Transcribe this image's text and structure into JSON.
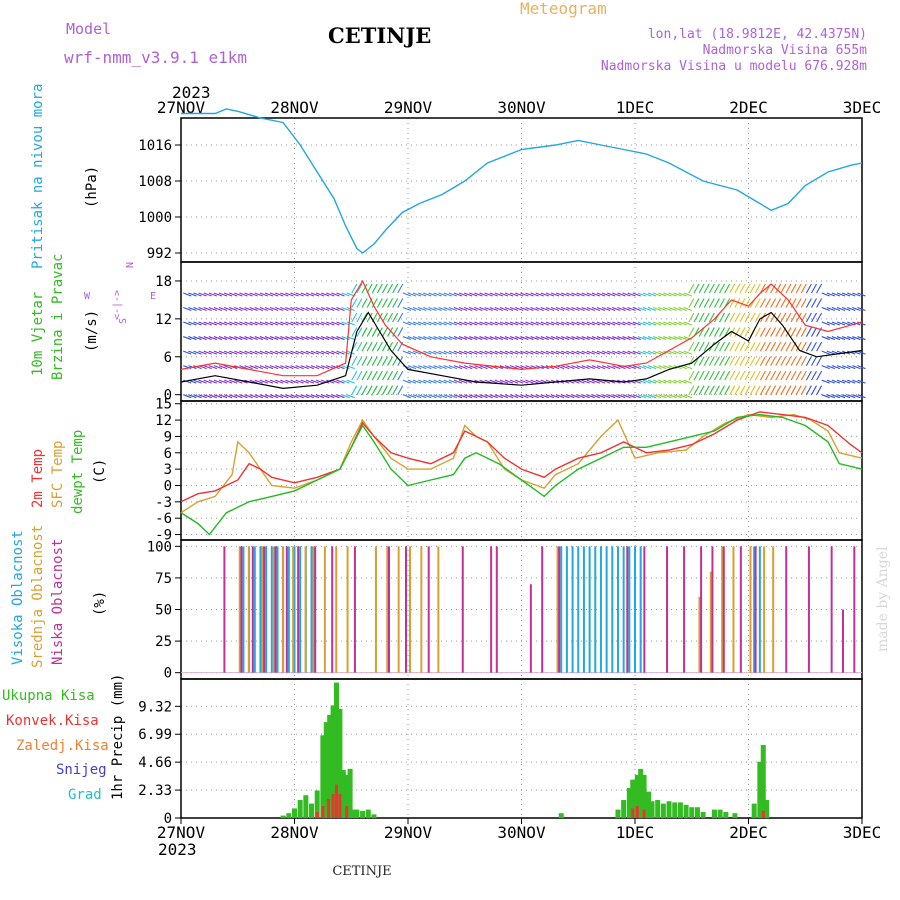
{
  "header": {
    "model_label": "Model",
    "model_name": "wrf-nmm_v3.9.1 e1km",
    "city": "CETINJE",
    "meteogram": "Meteogram",
    "lonlat": "lon,lat (18.9812E, 42.4375N)",
    "altitude": "Nadmorska Visina 655m",
    "model_altitude": "Nadmorska Visina u modelu 676.928m",
    "year": "2023",
    "footer_city": "CETINJE",
    "credit": "made by Angel"
  },
  "time_axis": {
    "labels": [
      "27NOV",
      "28NOV",
      "29NOV",
      "30NOV",
      "1DEC",
      "2DEC",
      "3DEC"
    ],
    "year": "2023"
  },
  "colors": {
    "pressure": "#22a7e0",
    "wind_speed": "#000000",
    "gust": "#ff3030",
    "temp2m": "#ee3333",
    "sfc_temp": "#d9a030",
    "dewpt": "#22bb22",
    "cloud_high": "#22a7e0",
    "cloud_mid": "#d9a030",
    "cloud_low": "#c0309a",
    "precip_total": "#33bb22",
    "precip_conv": "#ee3333"
  },
  "panels": {
    "pressure": {
      "title": "Pritisak na nivou mora",
      "unit": "(hPa)",
      "ticks": [
        992,
        1000,
        1008,
        1016
      ],
      "ylim": [
        990,
        1022
      ]
    },
    "wind": {
      "title1": "10m Vjetar",
      "title2": "Brzina i Pravac",
      "unit": "(m/s)",
      "ticks": [
        0,
        6,
        12,
        18
      ],
      "ylim": [
        -1,
        21
      ],
      "compass": {
        "n": "N",
        "w": "W",
        "e": "E",
        "arrows": "<-|->",
        "s": "S"
      }
    },
    "temp": {
      "title1": "2m Temp",
      "title2": "SFC Temp",
      "title3": "dewpt Temp",
      "unit": "(C)",
      "ticks": [
        -9,
        -6,
        -3,
        0,
        3,
        6,
        9,
        12,
        15
      ],
      "ylim": [
        -10,
        15.5
      ]
    },
    "cloud": {
      "title1": "Visoka Oblacnost",
      "title2": "Srednja Oblacnost",
      "title3": "Niska Oblacnost",
      "unit": "(%)",
      "ticks": [
        0,
        25,
        50,
        75,
        100
      ],
      "ylim": [
        -5,
        105
      ]
    },
    "precip": {
      "title1": "Ukupna Kisa",
      "title2": "Konvek.Kisa",
      "title3": "Zaledj.Kisa",
      "title4": "Snijeg",
      "title5": "Grad",
      "unit": "1hr Precip (mm)",
      "ticks": [
        0,
        2.33,
        4.66,
        6.99,
        9.32
      ],
      "ylim": [
        0,
        11.6
      ]
    }
  },
  "chart_data": {
    "type": "line",
    "x_unit": "days since 27NOV 00UTC",
    "pressure": [
      [
        0,
        1023
      ],
      [
        0.3,
        1023
      ],
      [
        0.4,
        1024
      ],
      [
        0.5,
        1023.5
      ],
      [
        0.7,
        1022
      ],
      [
        0.9,
        1021
      ],
      [
        1.05,
        1016
      ],
      [
        1.2,
        1010
      ],
      [
        1.35,
        1004
      ],
      [
        1.45,
        998
      ],
      [
        1.55,
        993
      ],
      [
        1.6,
        992
      ],
      [
        1.7,
        994
      ],
      [
        1.8,
        997
      ],
      [
        1.95,
        1001
      ],
      [
        2.1,
        1003
      ],
      [
        2.3,
        1005
      ],
      [
        2.5,
        1008
      ],
      [
        2.7,
        1012
      ],
      [
        3.0,
        1015
      ],
      [
        3.3,
        1016
      ],
      [
        3.5,
        1017
      ],
      [
        3.7,
        1016
      ],
      [
        3.9,
        1015
      ],
      [
        4.1,
        1014
      ],
      [
        4.3,
        1012
      ],
      [
        4.6,
        1008
      ],
      [
        4.9,
        1006
      ],
      [
        5.1,
        1003
      ],
      [
        5.2,
        1001.5
      ],
      [
        5.35,
        1003
      ],
      [
        5.5,
        1007
      ],
      [
        5.7,
        1010
      ],
      [
        5.9,
        1011.5
      ],
      [
        6.0,
        1012
      ]
    ],
    "wind_speed": [
      [
        0,
        2
      ],
      [
        0.3,
        3
      ],
      [
        0.6,
        2
      ],
      [
        0.9,
        1
      ],
      [
        1.2,
        1.5
      ],
      [
        1.45,
        3
      ],
      [
        1.55,
        10
      ],
      [
        1.65,
        13
      ],
      [
        1.75,
        10
      ],
      [
        1.85,
        7
      ],
      [
        2.0,
        4
      ],
      [
        2.3,
        3
      ],
      [
        2.6,
        2
      ],
      [
        3.0,
        1.5
      ],
      [
        3.3,
        2
      ],
      [
        3.6,
        2.5
      ],
      [
        3.9,
        2
      ],
      [
        4.1,
        2.5
      ],
      [
        4.3,
        4
      ],
      [
        4.5,
        5
      ],
      [
        4.7,
        8
      ],
      [
        4.85,
        10
      ],
      [
        5.0,
        8.5
      ],
      [
        5.1,
        12
      ],
      [
        5.2,
        13
      ],
      [
        5.3,
        11
      ],
      [
        5.45,
        7
      ],
      [
        5.6,
        6
      ],
      [
        5.8,
        6.5
      ],
      [
        6.0,
        7
      ]
    ],
    "wind_gust": [
      [
        0,
        4
      ],
      [
        0.3,
        5
      ],
      [
        0.6,
        4
      ],
      [
        0.9,
        3
      ],
      [
        1.2,
        3
      ],
      [
        1.45,
        5
      ],
      [
        1.5,
        15
      ],
      [
        1.6,
        18
      ],
      [
        1.7,
        14
      ],
      [
        1.8,
        11
      ],
      [
        1.95,
        8
      ],
      [
        2.2,
        6
      ],
      [
        2.5,
        5
      ],
      [
        3.0,
        4
      ],
      [
        3.3,
        4.5
      ],
      [
        3.6,
        5.5
      ],
      [
        3.9,
        4.5
      ],
      [
        4.1,
        5
      ],
      [
        4.3,
        7
      ],
      [
        4.5,
        9
      ],
      [
        4.7,
        12
      ],
      [
        4.85,
        15
      ],
      [
        5.0,
        14
      ],
      [
        5.1,
        16
      ],
      [
        5.2,
        17.5
      ],
      [
        5.35,
        15
      ],
      [
        5.5,
        11
      ],
      [
        5.7,
        10
      ],
      [
        5.9,
        11
      ],
      [
        6.0,
        11.5
      ]
    ],
    "temp2m": [
      [
        0,
        -3
      ],
      [
        0.15,
        -1.5
      ],
      [
        0.3,
        -1
      ],
      [
        0.5,
        1
      ],
      [
        0.6,
        4
      ],
      [
        0.7,
        3
      ],
      [
        0.8,
        1.5
      ],
      [
        1.0,
        0.5
      ],
      [
        1.2,
        1.5
      ],
      [
        1.4,
        3
      ],
      [
        1.5,
        7
      ],
      [
        1.6,
        11.5
      ],
      [
        1.7,
        9
      ],
      [
        1.85,
        6
      ],
      [
        2.0,
        5
      ],
      [
        2.2,
        4
      ],
      [
        2.4,
        6
      ],
      [
        2.5,
        10
      ],
      [
        2.6,
        9
      ],
      [
        2.7,
        8
      ],
      [
        2.85,
        5
      ],
      [
        3.0,
        3
      ],
      [
        3.2,
        1.5
      ],
      [
        3.3,
        3
      ],
      [
        3.5,
        5
      ],
      [
        3.7,
        6
      ],
      [
        3.9,
        8
      ],
      [
        4.1,
        6
      ],
      [
        4.3,
        6.5
      ],
      [
        4.5,
        7.5
      ],
      [
        4.7,
        9.5
      ],
      [
        4.9,
        12
      ],
      [
        5.1,
        13.5
      ],
      [
        5.3,
        13
      ],
      [
        5.5,
        12.5
      ],
      [
        5.7,
        11
      ],
      [
        5.9,
        7.5
      ],
      [
        6.0,
        6
      ]
    ],
    "sfc_temp": [
      [
        0,
        -5
      ],
      [
        0.15,
        -3
      ],
      [
        0.3,
        -2
      ],
      [
        0.45,
        2
      ],
      [
        0.5,
        8
      ],
      [
        0.6,
        6
      ],
      [
        0.7,
        3
      ],
      [
        0.8,
        0
      ],
      [
        1.0,
        -0.5
      ],
      [
        1.2,
        1
      ],
      [
        1.4,
        3
      ],
      [
        1.5,
        8
      ],
      [
        1.6,
        12
      ],
      [
        1.7,
        9
      ],
      [
        1.85,
        5
      ],
      [
        2.0,
        3
      ],
      [
        2.2,
        3
      ],
      [
        2.4,
        5
      ],
      [
        2.5,
        11
      ],
      [
        2.6,
        9
      ],
      [
        2.7,
        8
      ],
      [
        2.85,
        3
      ],
      [
        3.0,
        1
      ],
      [
        3.2,
        -0.5
      ],
      [
        3.3,
        2
      ],
      [
        3.5,
        4
      ],
      [
        3.7,
        9
      ],
      [
        3.85,
        12
      ],
      [
        4.0,
        5
      ],
      [
        4.2,
        6
      ],
      [
        4.45,
        6.5
      ],
      [
        4.6,
        9
      ],
      [
        4.8,
        11.5
      ],
      [
        5.0,
        13
      ],
      [
        5.2,
        12.5
      ],
      [
        5.4,
        13
      ],
      [
        5.55,
        12
      ],
      [
        5.7,
        10
      ],
      [
        5.8,
        6
      ],
      [
        6.0,
        5
      ]
    ],
    "dewpt": [
      [
        0,
        -5
      ],
      [
        0.15,
        -7
      ],
      [
        0.25,
        -9
      ],
      [
        0.4,
        -5
      ],
      [
        0.6,
        -3
      ],
      [
        0.8,
        -2
      ],
      [
        1.0,
        -1
      ],
      [
        1.2,
        1
      ],
      [
        1.4,
        3
      ],
      [
        1.5,
        7
      ],
      [
        1.6,
        11
      ],
      [
        1.7,
        8
      ],
      [
        1.85,
        3
      ],
      [
        2.0,
        0
      ],
      [
        2.2,
        1
      ],
      [
        2.4,
        2
      ],
      [
        2.5,
        5
      ],
      [
        2.6,
        6
      ],
      [
        2.8,
        4
      ],
      [
        3.0,
        1
      ],
      [
        3.2,
        -2
      ],
      [
        3.3,
        0
      ],
      [
        3.5,
        3
      ],
      [
        3.7,
        5
      ],
      [
        3.9,
        7
      ],
      [
        4.1,
        7
      ],
      [
        4.3,
        8
      ],
      [
        4.5,
        9
      ],
      [
        4.7,
        10
      ],
      [
        4.9,
        12.5
      ],
      [
        5.1,
        13
      ],
      [
        5.3,
        12.5
      ],
      [
        5.5,
        11
      ],
      [
        5.7,
        8
      ],
      [
        5.8,
        4
      ],
      [
        6.0,
        3
      ]
    ],
    "cloud_high": [
      [
        0.55,
        100
      ],
      [
        0.6,
        100
      ],
      [
        0.65,
        100
      ],
      [
        0.7,
        100
      ],
      [
        0.75,
        100
      ],
      [
        0.8,
        100
      ],
      [
        0.85,
        100
      ],
      [
        0.9,
        100
      ],
      [
        0.95,
        100
      ],
      [
        1.0,
        100
      ],
      [
        1.05,
        100
      ],
      [
        1.1,
        100
      ],
      [
        1.15,
        100
      ],
      [
        3.35,
        100
      ],
      [
        3.4,
        100
      ],
      [
        3.45,
        100
      ],
      [
        3.5,
        100
      ],
      [
        3.55,
        100
      ],
      [
        3.6,
        100
      ],
      [
        3.65,
        100
      ],
      [
        3.7,
        100
      ],
      [
        3.75,
        100
      ],
      [
        3.8,
        100
      ],
      [
        3.85,
        100
      ],
      [
        3.9,
        100
      ],
      [
        3.95,
        100
      ],
      [
        4.0,
        100
      ],
      [
        4.05,
        100
      ],
      [
        5.05,
        100
      ],
      [
        5.1,
        100
      ]
    ],
    "cloud_mid": [
      [
        0.5,
        100
      ],
      [
        0.58,
        100
      ],
      [
        0.7,
        100
      ],
      [
        0.8,
        100
      ],
      [
        0.88,
        100
      ],
      [
        0.97,
        100
      ],
      [
        1.02,
        100
      ],
      [
        1.08,
        100
      ],
      [
        1.15,
        100
      ],
      [
        1.25,
        100
      ],
      [
        1.35,
        100
      ],
      [
        1.45,
        100
      ],
      [
        1.7,
        100
      ],
      [
        1.8,
        100
      ],
      [
        1.9,
        100
      ],
      [
        2.0,
        100
      ],
      [
        2.1,
        100
      ],
      [
        2.25,
        100
      ],
      [
        3.3,
        100
      ],
      [
        4.55,
        60
      ],
      [
        4.65,
        80
      ],
      [
        4.75,
        100
      ],
      [
        4.85,
        100
      ],
      [
        5.0,
        100
      ],
      [
        5.12,
        100
      ],
      [
        5.2,
        100
      ]
    ],
    "cloud_low": [
      [
        0.4,
        100
      ],
      [
        0.55,
        100
      ],
      [
        0.65,
        100
      ],
      [
        0.75,
        100
      ],
      [
        0.85,
        100
      ],
      [
        0.95,
        100
      ],
      [
        1.05,
        100
      ],
      [
        1.2,
        100
      ],
      [
        1.35,
        100
      ],
      [
        1.55,
        100
      ],
      [
        1.85,
        100
      ],
      [
        2.0,
        100
      ],
      [
        2.2,
        100
      ],
      [
        2.5,
        100
      ],
      [
        2.75,
        100
      ],
      [
        2.8,
        100
      ],
      [
        3.1,
        70
      ],
      [
        3.2,
        100
      ],
      [
        3.35,
        100
      ],
      [
        3.95,
        100
      ],
      [
        4.1,
        100
      ],
      [
        4.3,
        100
      ],
      [
        4.45,
        100
      ],
      [
        4.6,
        100
      ],
      [
        4.7,
        100
      ],
      [
        4.8,
        100
      ],
      [
        4.95,
        100
      ],
      [
        5.08,
        100
      ],
      [
        5.35,
        100
      ],
      [
        5.55,
        100
      ],
      [
        5.75,
        100
      ],
      [
        5.85,
        50
      ],
      [
        5.95,
        100
      ]
    ],
    "precip_total": [
      [
        0.9,
        0.2
      ],
      [
        0.95,
        0.4
      ],
      [
        1.0,
        0.8
      ],
      [
        1.05,
        1.5
      ],
      [
        1.1,
        1.9
      ],
      [
        1.15,
        1.2
      ],
      [
        1.2,
        2.3
      ],
      [
        1.25,
        6.9
      ],
      [
        1.28,
        8
      ],
      [
        1.31,
        8.6
      ],
      [
        1.34,
        9.4
      ],
      [
        1.37,
        11.3
      ],
      [
        1.4,
        9.1
      ],
      [
        1.43,
        4
      ],
      [
        1.46,
        3.6
      ],
      [
        1.49,
        4.1
      ],
      [
        1.52,
        0.7
      ],
      [
        1.55,
        0.7
      ],
      [
        1.6,
        0.6
      ],
      [
        1.65,
        0.7
      ],
      [
        1.7,
        0.3
      ],
      [
        3.35,
        0.4
      ],
      [
        3.85,
        0.7
      ],
      [
        3.9,
        1.5
      ],
      [
        3.95,
        2.5
      ],
      [
        3.98,
        3.2
      ],
      [
        4.02,
        3.6
      ],
      [
        4.05,
        4.1
      ],
      [
        4.08,
        3.6
      ],
      [
        4.12,
        2.2
      ],
      [
        4.15,
        1.4
      ],
      [
        4.2,
        1.5
      ],
      [
        4.25,
        1.2
      ],
      [
        4.3,
        1.4
      ],
      [
        4.35,
        1.3
      ],
      [
        4.4,
        1.3
      ],
      [
        4.45,
        1.1
      ],
      [
        4.5,
        0.9
      ],
      [
        4.55,
        0.9
      ],
      [
        4.6,
        0.5
      ],
      [
        4.7,
        0.7
      ],
      [
        4.75,
        0.7
      ],
      [
        4.8,
        0.5
      ],
      [
        4.88,
        0.4
      ],
      [
        5.05,
        1.2
      ],
      [
        5.1,
        4.7
      ],
      [
        5.13,
        6.1
      ],
      [
        5.16,
        1.5
      ]
    ],
    "precip_conv": [
      [
        1.2,
        0.5
      ],
      [
        1.25,
        1.0
      ],
      [
        1.3,
        1.6
      ],
      [
        1.34,
        2.0
      ],
      [
        1.37,
        2.8
      ],
      [
        1.4,
        2.0
      ],
      [
        1.46,
        1.0
      ],
      [
        3.98,
        0.8
      ],
      [
        4.02,
        1.0
      ],
      [
        4.08,
        0.7
      ],
      [
        5.13,
        0.6
      ]
    ]
  }
}
